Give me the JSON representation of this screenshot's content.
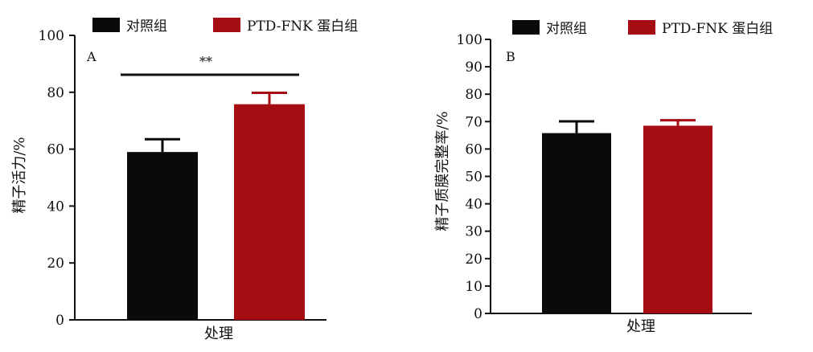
{
  "chart_data": [
    {
      "type": "bar",
      "panel_label": "A",
      "categories": [
        "对照组",
        "PTD-FNK 蛋白组"
      ],
      "values": [
        59,
        75.8
      ],
      "errors": [
        4.5,
        4
      ],
      "colors": [
        "#0a0a0a",
        "#a50d12"
      ],
      "legend": [
        "对照组",
        "PTD-FNK 蛋白组"
      ],
      "legend_position": "top",
      "xlabel": "处理",
      "ylabel": "精子活力/%",
      "ylim": [
        0,
        100
      ],
      "yticks": [
        "0",
        "20",
        "40",
        "60",
        "80",
        "100"
      ],
      "significance": "**",
      "grid": false
    },
    {
      "type": "bar",
      "panel_label": "B",
      "categories": [
        "对照组",
        "PTD-FNK 蛋白组"
      ],
      "values": [
        65.8,
        68.5
      ],
      "errors": [
        4.3,
        2
      ],
      "colors": [
        "#0a0a0a",
        "#a50d12"
      ],
      "legend": [
        "对照组",
        "PTD-FNK 蛋白组"
      ],
      "legend_position": "top",
      "xlabel": "处理",
      "ylabel": "精子质膜完整率/%",
      "ylim": [
        0,
        100
      ],
      "yticks": [
        "0",
        "10",
        "20",
        "30",
        "40",
        "50",
        "60",
        "70",
        "80",
        "90",
        "100"
      ],
      "grid": false
    }
  ]
}
